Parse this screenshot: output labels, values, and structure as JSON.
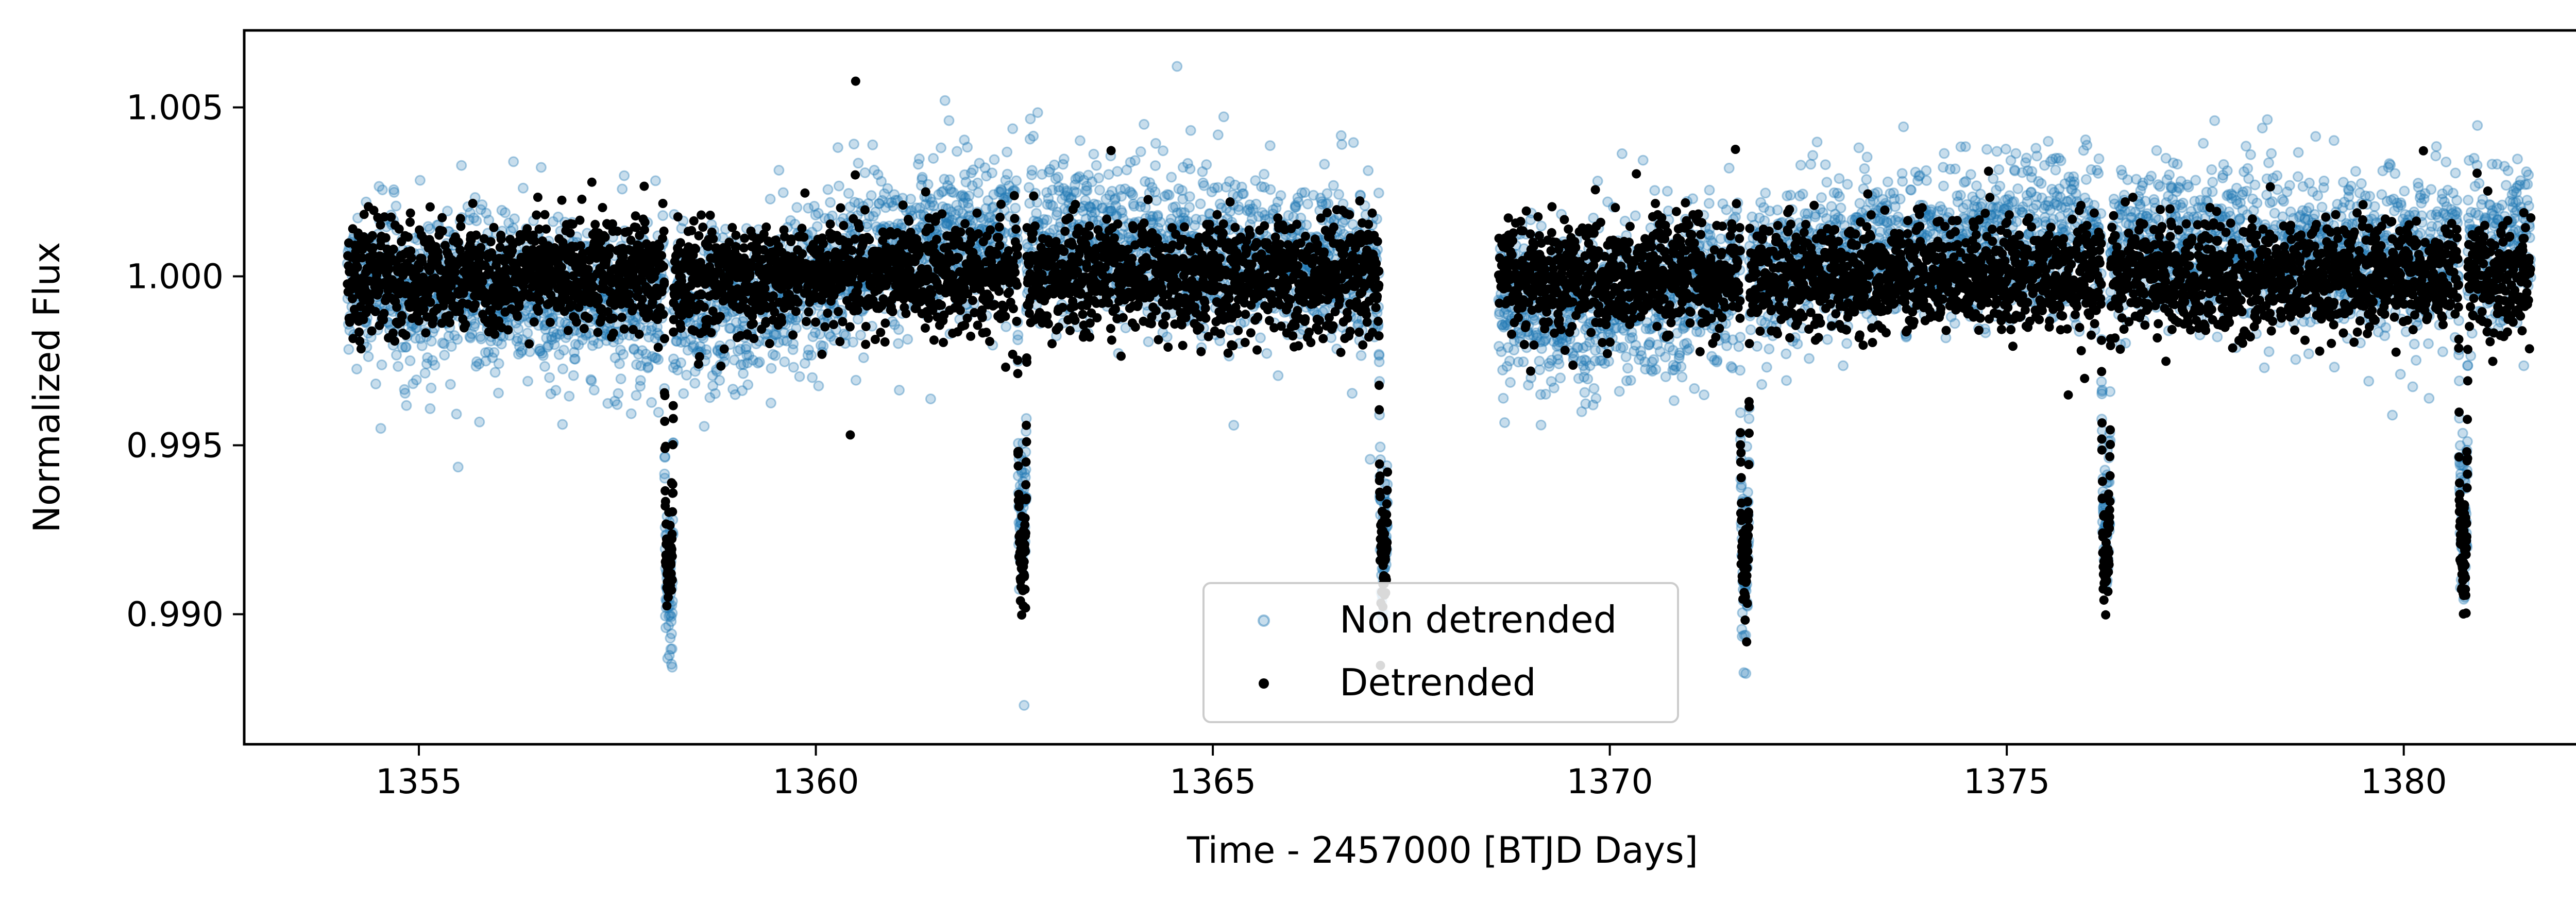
{
  "chart_data": {
    "type": "scatter",
    "title": "",
    "xlabel": "Time - 2457000 [BTJD Days]",
    "ylabel": "Normalized Flux",
    "xlim": [
      1352.8,
      1383.0
    ],
    "ylim": [
      0.98615,
      1.00728
    ],
    "xticks": [
      1355,
      1360,
      1365,
      1370,
      1375,
      1380
    ],
    "xtick_labels": [
      "1355",
      "1360",
      "1365",
      "1370",
      "1375",
      "1380"
    ],
    "yticks": [
      0.99,
      0.995,
      1.0,
      1.005
    ],
    "ytick_labels": [
      "0.990",
      "0.995",
      "1.000",
      "1.005"
    ],
    "grid": false,
    "legend": {
      "position": "bottom-center"
    },
    "observation_segments": [
      [
        1354.1,
        1367.2
      ],
      [
        1368.6,
        1381.6
      ]
    ],
    "transit_times": [
      1358.15,
      1362.6,
      1367.15,
      1371.7,
      1376.25,
      1380.75
    ],
    "transit_depth": 0.0085,
    "series": [
      {
        "name": "Non detrended",
        "color": "#1f77b4",
        "marker": "hollow-circle",
        "alpha": 0.25,
        "noise_sigma": 0.0012,
        "trend": [
          [
            1354.1,
            -0.0002
          ],
          [
            1357.5,
            -0.0008
          ],
          [
            1358.5,
            -0.001
          ],
          [
            1361.5,
            0.0012
          ],
          [
            1363.0,
            0.0013
          ],
          [
            1366.0,
            0.0005
          ],
          [
            1367.2,
            0.0005
          ],
          [
            1368.6,
            -0.0006
          ],
          [
            1370.0,
            -0.001
          ],
          [
            1372.5,
            0.0005
          ],
          [
            1375.0,
            0.0012
          ],
          [
            1377.5,
            0.001
          ],
          [
            1380.0,
            0.0006
          ],
          [
            1381.6,
            0.001
          ]
        ]
      },
      {
        "name": "Detrended",
        "color": "#000000",
        "marker": "filled-circle",
        "alpha": 1.0,
        "noise_sigma": 0.0008,
        "trend": [
          [
            1354.1,
            0.0
          ],
          [
            1381.6,
            0.0
          ]
        ]
      }
    ]
  }
}
